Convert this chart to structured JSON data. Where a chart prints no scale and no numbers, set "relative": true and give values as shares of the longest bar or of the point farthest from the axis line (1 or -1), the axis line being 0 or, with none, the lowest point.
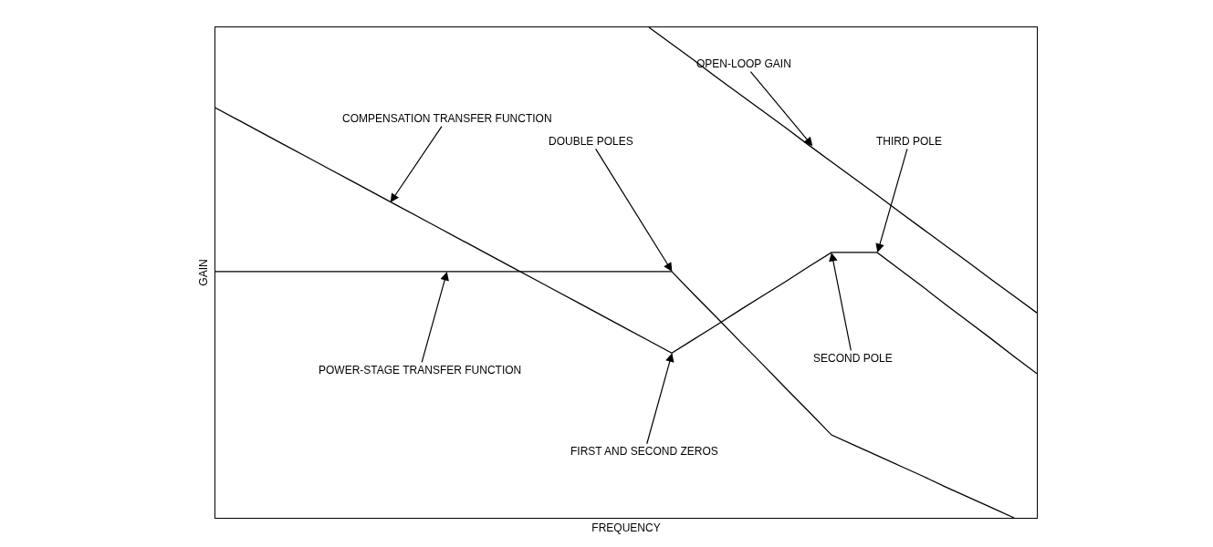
{
  "chart_data": {
    "type": "line",
    "relative": true,
    "xlabel": "FREQUENCY",
    "ylabel": "GAIN",
    "marker": "none",
    "line_style": "solid",
    "categories": [
      null,
      null,
      null,
      null,
      null,
      null,
      null,
      null,
      null,
      null,
      null,
      null,
      null,
      null,
      null,
      null,
      null,
      null,
      null,
      null,
      null,
      null,
      null,
      null,
      null,
      null,
      null,
      null,
      null,
      null,
      null,
      null,
      null,
      null,
      null,
      null,
      null
    ],
    "series": [
      {
        "color": "#000000",
        "values": [
          null,
          null,
          null,
          null,
          null,
          null,
          null,
          null,
          null,
          null,
          null,
          null,
          null,
          null,
          null,
          null,
          null,
          null,
          null,
          1.0,
          0.966,
          0.932,
          0.897,
          0.863,
          0.829,
          0.795,
          0.76,
          0.726,
          0.692,
          0.658,
          0.623,
          0.589,
          0.555,
          0.521,
          0.486,
          0.452,
          0.418
        ]
      },
      {
        "color": "#000000",
        "values": [
          0.836,
          0.811,
          0.786,
          0.761,
          0.736,
          0.711,
          0.686,
          0.661,
          0.636,
          0.611,
          0.586,
          0.561,
          0.536,
          0.511,
          0.486,
          0.461,
          0.436,
          0.411,
          0.386,
          0.361,
          0.336,
          0.365,
          0.394,
          0.424,
          0.453,
          0.482,
          0.512,
          0.541,
          0.541,
          0.541,
          0.506,
          0.471,
          0.435,
          0.4,
          0.365,
          0.329,
          0.294
        ]
      },
      {
        "color": "#000000",
        "values": [
          0.502,
          0.502,
          0.502,
          0.502,
          0.502,
          0.502,
          0.502,
          0.502,
          0.502,
          0.502,
          0.502,
          0.502,
          0.502,
          0.502,
          0.502,
          0.502,
          0.502,
          0.502,
          0.502,
          0.502,
          0.502,
          0.454,
          0.407,
          0.359,
          0.312,
          0.264,
          0.217,
          0.169,
          0.148,
          0.127,
          0.106,
          0.085,
          0.063,
          0.042,
          0.021,
          0,
          null
        ]
      }
    ],
    "annotations": [
      "OPEN-LOOP GAIN",
      "COMPENSATION TRANSFER FUNCTION",
      "DOUBLE POLES",
      "THIRD POLE",
      "POWER-STAGE TRANSFER FUNCTION",
      "SECOND POLE",
      "FIRST AND SECOND ZEROS"
    ]
  }
}
